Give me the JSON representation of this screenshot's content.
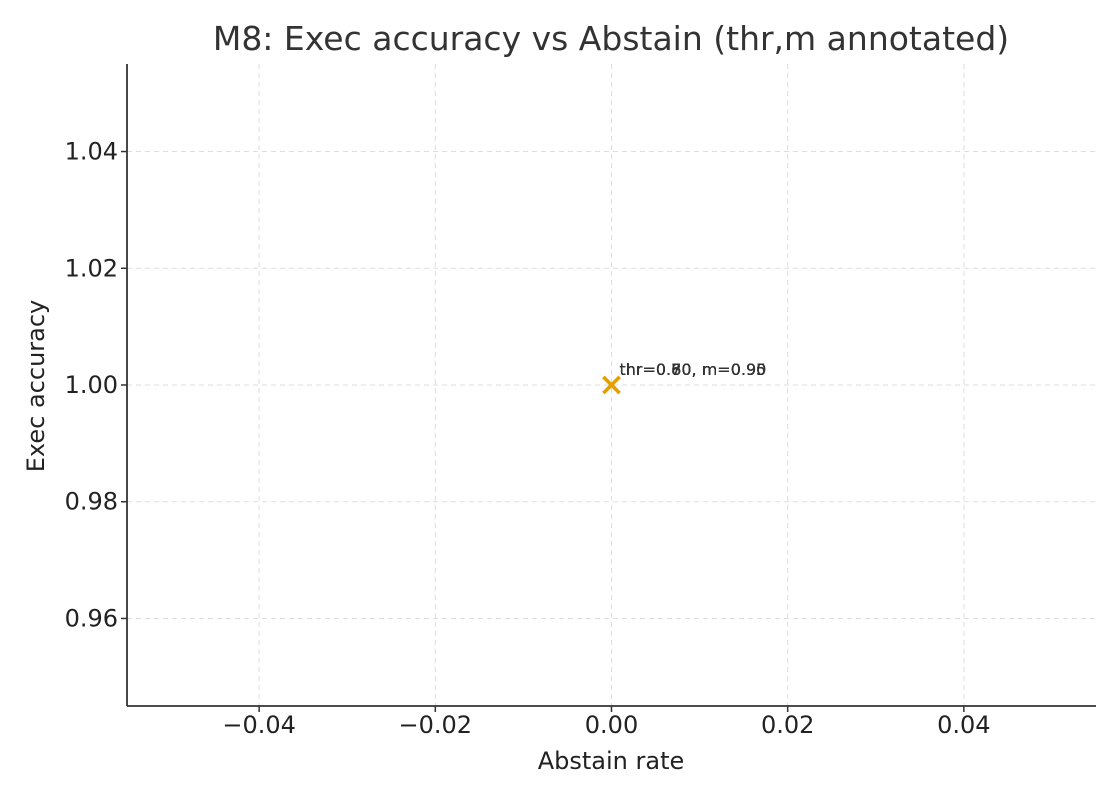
{
  "chart_data": {
    "type": "scatter",
    "title": "M8: Exec accuracy vs Abstain (thr,m annotated)",
    "xlabel": "Abstain rate",
    "ylabel": "Exec accuracy",
    "xlim": [
      -0.055,
      0.055
    ],
    "ylim": [
      0.945,
      1.055
    ],
    "xticks": [
      -0.04,
      -0.02,
      0.0,
      0.02,
      0.04
    ],
    "xtick_labels": [
      "−0.04",
      "−0.02",
      "0.00",
      "0.02",
      "0.04"
    ],
    "yticks": [
      0.96,
      0.98,
      1.0,
      1.02,
      1.04
    ],
    "ytick_labels": [
      "0.96",
      "0.98",
      "1.00",
      "1.02",
      "1.04"
    ],
    "grid": true,
    "marker": "x",
    "marker_color": "#E69F00",
    "points": [
      {
        "x": 0.0,
        "y": 1.0,
        "label": "thr=0.60, m=0.95"
      },
      {
        "x": 0.0,
        "y": 1.0,
        "label": "thr=0.70, m=0.95"
      },
      {
        "x": 0.0,
        "y": 1.0,
        "label": "thr=0.80, m=0.95"
      },
      {
        "x": 0.0,
        "y": 1.0,
        "label": "thr=0.60, m=0.90"
      },
      {
        "x": 0.0,
        "y": 1.0,
        "label": "thr=0.70, m=0.90"
      },
      {
        "x": 0.0,
        "y": 1.0,
        "label": "thr=0.80, m=0.90"
      }
    ]
  }
}
